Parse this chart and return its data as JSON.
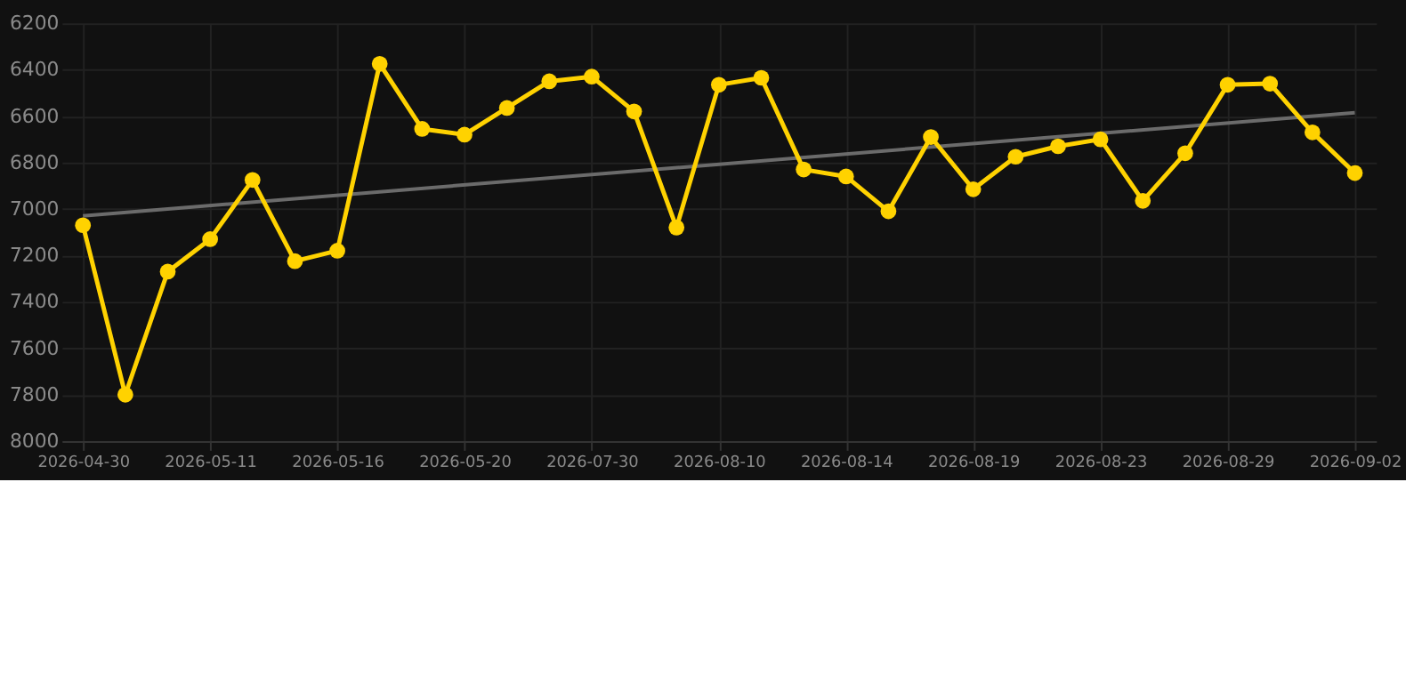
{
  "chart_data": {
    "type": "line",
    "categories": [
      "2026-04-30",
      null,
      null,
      "2026-05-11",
      null,
      null,
      "2026-05-16",
      null,
      null,
      "2026-05-20",
      null,
      null,
      "2026-07-30",
      null,
      null,
      "2026-08-10",
      null,
      null,
      "2026-08-14",
      null,
      null,
      "2026-08-19",
      null,
      null,
      "2026-08-23",
      null,
      null,
      "2026-08-29",
      null,
      null,
      "2026-09-02"
    ],
    "series": [
      {
        "color": "#ffd200",
        "marker": "circle",
        "values": [
          7070,
          7800,
          7270,
          7130,
          6875,
          7225,
          7180,
          6375,
          6655,
          6680,
          6565,
          6450,
          6430,
          6580,
          7080,
          6465,
          6435,
          6830,
          6860,
          7010,
          6690,
          6915,
          6775,
          6730,
          6700,
          6965,
          6760,
          6465,
          6460,
          6670,
          6845
        ]
      },
      {
        "type": "line",
        "color": "#6b6b6b",
        "marker": "none",
        "values": [
          7030,
          null,
          null,
          null,
          null,
          null,
          null,
          null,
          null,
          null,
          null,
          null,
          null,
          null,
          null,
          null,
          null,
          null,
          null,
          null,
          null,
          null,
          null,
          null,
          null,
          null,
          null,
          null,
          null,
          null,
          6585
        ]
      }
    ],
    "ylim": [
      8000,
      6200
    ],
    "yticks": [
      6200,
      6400,
      6600,
      6800,
      7000,
      7200,
      7400,
      7600,
      7800,
      8000
    ],
    "grid": true
  }
}
